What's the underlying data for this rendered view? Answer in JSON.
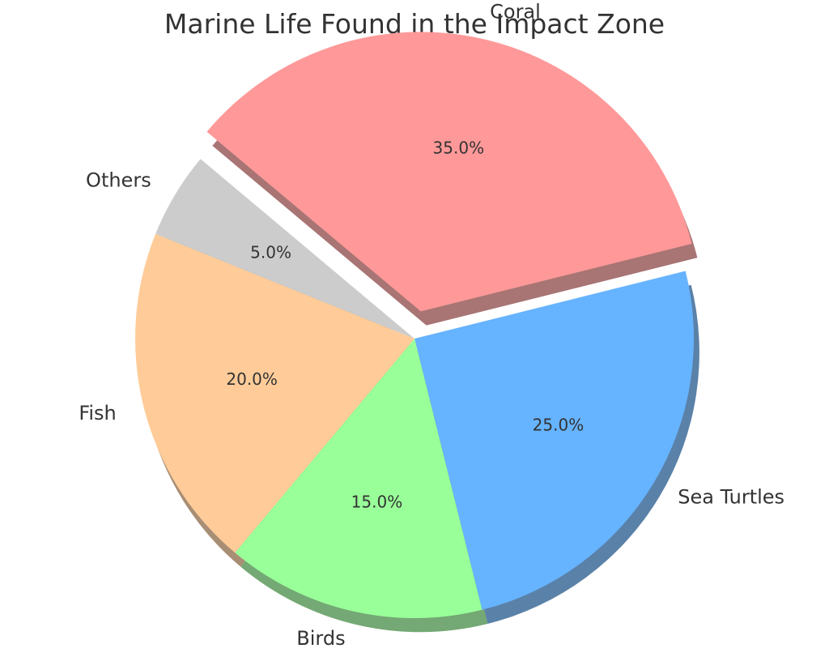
{
  "chart_data": {
    "type": "pie",
    "title": "Marine Life Found in the Impact Zone",
    "categories": [
      "Coral",
      "Sea Turtles",
      "Birds",
      "Fish",
      "Others"
    ],
    "values": [
      35,
      25,
      15,
      20,
      5
    ],
    "pct_labels": [
      "35.0%",
      "25.0%",
      "15.0%",
      "20.0%",
      "5.0%"
    ],
    "colors": [
      "#ff9999",
      "#66b3ff",
      "#99ff99",
      "#ffcc99",
      "#cccccc"
    ],
    "exploded": [
      "Coral"
    ],
    "shadow": true,
    "start_angle_deg": 140,
    "direction": "clockwise",
    "legend": "none"
  }
}
